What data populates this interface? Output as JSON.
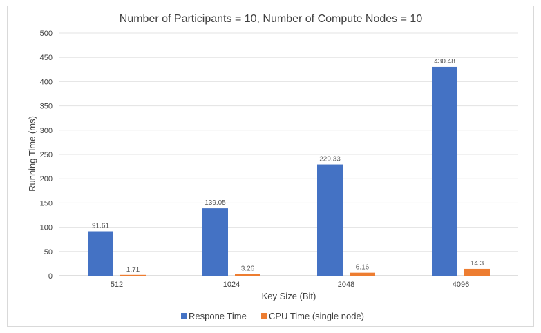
{
  "chart_data": {
    "type": "bar",
    "title": "Number of  Participants = 10, Number of Compute Nodes = 10",
    "xlabel": "Key Size (Bit)",
    "ylabel": "Running Time (ms)",
    "categories": [
      "512",
      "1024",
      "2048",
      "4096"
    ],
    "ylim": [
      0,
      500
    ],
    "yticks": [
      0,
      50,
      100,
      150,
      200,
      250,
      300,
      350,
      400,
      450,
      500
    ],
    "grid": true,
    "legend_position": "bottom",
    "series": [
      {
        "name": "Respone Time",
        "values": [
          91.61,
          139.05,
          229.33,
          430.48
        ],
        "labels": [
          "91.61",
          "139.05",
          "229.33",
          "430.48"
        ],
        "color": "#4472c4"
      },
      {
        "name": "CPU Time (single node)",
        "values": [
          1.71,
          3.26,
          6.16,
          14.3
        ],
        "labels": [
          "1.71",
          "3.26",
          "6.16",
          "14.3"
        ],
        "color": "#ed7d31"
      }
    ]
  }
}
